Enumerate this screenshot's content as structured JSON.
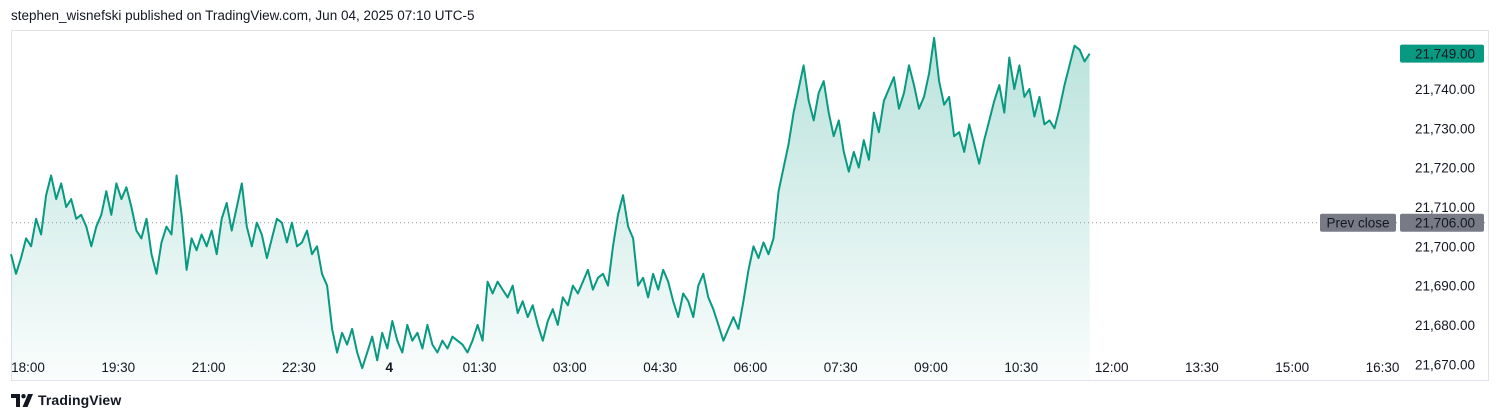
{
  "attribution": "stephen_wisnefski published on TradingView.com, Jun 04, 2025 07:10 UTC-5",
  "footer": {
    "brand": "TradingView",
    "logo_icon": "tradingview-logo-icon"
  },
  "colors": {
    "line": "#089981",
    "fill_top": "#089981",
    "label_bg": "#089981",
    "prev_close_bg": "#787b86",
    "dotted_line": "#9598a1"
  },
  "chart_data": {
    "type": "area",
    "y_range": [
      21666,
      21755
    ],
    "y_ticks": [
      {
        "value": 21740,
        "label": "21,740.00"
      },
      {
        "value": 21730,
        "label": "21,730.00"
      },
      {
        "value": 21720,
        "label": "21,720.00"
      },
      {
        "value": 21710,
        "label": "21,710.00"
      },
      {
        "value": 21700,
        "label": "21,700.00"
      },
      {
        "value": 21690,
        "label": "21,690.00"
      },
      {
        "value": 21680,
        "label": "21,680.00"
      },
      {
        "value": 21670,
        "label": "21,670.00"
      }
    ],
    "x_range": [
      "17:59",
      "18:00+1d"
    ],
    "x_ticks": [
      {
        "time": "18:00",
        "label": "18:00",
        "bold": false
      },
      {
        "time": "19:30",
        "label": "19:30",
        "bold": false
      },
      {
        "time": "21:00",
        "label": "21:00",
        "bold": false
      },
      {
        "time": "22:30",
        "label": "22:30",
        "bold": false
      },
      {
        "time": "00:00+1d",
        "label": "4",
        "bold": true
      },
      {
        "time": "01:30+1d",
        "label": "01:30",
        "bold": false
      },
      {
        "time": "03:00+1d",
        "label": "03:00",
        "bold": false
      },
      {
        "time": "04:30+1d",
        "label": "04:30",
        "bold": false
      },
      {
        "time": "06:00+1d",
        "label": "06:00",
        "bold": false
      },
      {
        "time": "07:30+1d",
        "label": "07:30",
        "bold": false
      },
      {
        "time": "09:00+1d",
        "label": "09:00",
        "bold": false
      },
      {
        "time": "10:30+1d",
        "label": "10:30",
        "bold": false
      },
      {
        "time": "12:00+1d",
        "label": "12:00",
        "bold": false
      },
      {
        "time": "13:30+1d",
        "label": "13:30",
        "bold": false
      },
      {
        "time": "15:00+1d",
        "label": "15:00",
        "bold": false
      },
      {
        "time": "16:30+1d",
        "label": "16:30",
        "bold": false
      }
    ],
    "last_price": {
      "value": 21749,
      "label": "21,749.00"
    },
    "prev_close": {
      "value": 21706,
      "label": "21,706.00",
      "text": "Prev close"
    },
    "series": [
      {
        "points": [
          [
            "18:00",
            21698
          ],
          [
            "18:05",
            21693
          ],
          [
            "18:10",
            21697
          ],
          [
            "18:15",
            21702
          ],
          [
            "18:20",
            21700
          ],
          [
            "18:25",
            21707
          ],
          [
            "18:30",
            21703
          ],
          [
            "18:35",
            21713
          ],
          [
            "18:40",
            21718
          ],
          [
            "18:45",
            21712
          ],
          [
            "18:50",
            21716
          ],
          [
            "18:55",
            21710
          ],
          [
            "19:00",
            21712
          ],
          [
            "19:05",
            21707
          ],
          [
            "19:10",
            21708
          ],
          [
            "19:15",
            21705
          ],
          [
            "19:20",
            21700
          ],
          [
            "19:25",
            21705
          ],
          [
            "19:30",
            21708
          ],
          [
            "19:35",
            21714
          ],
          [
            "19:40",
            21708
          ],
          [
            "19:45",
            21716
          ],
          [
            "19:50",
            21712
          ],
          [
            "19:55",
            21715
          ],
          [
            "20:00",
            21710
          ],
          [
            "20:05",
            21704
          ],
          [
            "20:10",
            21702
          ],
          [
            "20:15",
            21707
          ],
          [
            "20:20",
            21698
          ],
          [
            "20:25",
            21693
          ],
          [
            "20:30",
            21701
          ],
          [
            "20:35",
            21705
          ],
          [
            "20:40",
            21703
          ],
          [
            "20:45",
            21718
          ],
          [
            "20:50",
            21708
          ],
          [
            "20:55",
            21694
          ],
          [
            "21:00",
            21702
          ],
          [
            "21:05",
            21699
          ],
          [
            "21:10",
            21703
          ],
          [
            "21:15",
            21700
          ],
          [
            "21:20",
            21704
          ],
          [
            "21:25",
            21698
          ],
          [
            "21:30",
            21707
          ],
          [
            "21:35",
            21711
          ],
          [
            "21:40",
            21704
          ],
          [
            "21:45",
            21710
          ],
          [
            "21:50",
            21716
          ],
          [
            "21:55",
            21705
          ],
          [
            "22:00",
            21700
          ],
          [
            "22:05",
            21706
          ],
          [
            "22:10",
            21703
          ],
          [
            "22:15",
            21697
          ],
          [
            "22:20",
            21702
          ],
          [
            "22:25",
            21707
          ],
          [
            "22:30",
            21706
          ],
          [
            "22:35",
            21701
          ],
          [
            "22:40",
            21706
          ],
          [
            "22:45",
            21700
          ],
          [
            "22:50",
            21701
          ],
          [
            "22:55",
            21704
          ],
          [
            "23:00",
            21698
          ],
          [
            "23:05",
            21700
          ],
          [
            "23:10",
            21693
          ],
          [
            "23:15",
            21690
          ],
          [
            "23:20",
            21679
          ],
          [
            "23:25",
            21673
          ],
          [
            "23:30",
            21678
          ],
          [
            "23:35",
            21675
          ],
          [
            "23:40",
            21679
          ],
          [
            "23:45",
            21673
          ],
          [
            "23:50",
            21669
          ],
          [
            "23:55",
            21673
          ],
          [
            "00:00",
            21677
          ],
          [
            "00:05",
            21671
          ],
          [
            "00:10",
            21678
          ],
          [
            "00:15",
            21674
          ],
          [
            "00:20",
            21681
          ],
          [
            "00:25",
            21676
          ],
          [
            "00:30",
            21673
          ],
          [
            "00:35",
            21680
          ],
          [
            "00:40",
            21676
          ],
          [
            "00:45",
            21678
          ],
          [
            "00:50",
            21674
          ],
          [
            "00:55",
            21680
          ],
          [
            "01:00",
            21675
          ],
          [
            "01:05",
            21673
          ],
          [
            "01:10",
            21676
          ],
          [
            "01:15",
            21674
          ],
          [
            "01:20",
            21677
          ],
          [
            "01:25",
            21676
          ],
          [
            "01:30",
            21675
          ],
          [
            "01:35",
            21673
          ],
          [
            "01:40",
            21676
          ],
          [
            "01:45",
            21680
          ],
          [
            "01:50",
            21676
          ],
          [
            "01:55",
            21691
          ],
          [
            "02:00",
            21688
          ],
          [
            "02:05",
            21691
          ],
          [
            "02:10",
            21689
          ],
          [
            "02:15",
            21687
          ],
          [
            "02:20",
            21690
          ],
          [
            "02:25",
            21683
          ],
          [
            "02:30",
            21686
          ],
          [
            "02:35",
            21682
          ],
          [
            "02:40",
            21685
          ],
          [
            "02:45",
            21680
          ],
          [
            "02:50",
            21676
          ],
          [
            "02:55",
            21681
          ],
          [
            "03:00",
            21684
          ],
          [
            "03:05",
            21680
          ],
          [
            "03:10",
            21687
          ],
          [
            "03:15",
            21685
          ],
          [
            "03:20",
            21690
          ],
          [
            "03:25",
            21688
          ],
          [
            "03:30",
            21691
          ],
          [
            "03:35",
            21694
          ],
          [
            "03:40",
            21689
          ],
          [
            "03:45",
            21692
          ],
          [
            "03:50",
            21693
          ],
          [
            "03:55",
            21690
          ],
          [
            "04:00",
            21700
          ],
          [
            "04:05",
            21708
          ],
          [
            "04:10",
            21713
          ],
          [
            "04:15",
            21705
          ],
          [
            "04:20",
            21702
          ],
          [
            "04:25",
            21690
          ],
          [
            "04:30",
            21692
          ],
          [
            "04:35",
            21687
          ],
          [
            "04:40",
            21693
          ],
          [
            "04:45",
            21689
          ],
          [
            "04:50",
            21694
          ],
          [
            "04:55",
            21691
          ],
          [
            "05:00",
            21686
          ],
          [
            "05:05",
            21682
          ],
          [
            "05:10",
            21688
          ],
          [
            "05:15",
            21686
          ],
          [
            "05:20",
            21682
          ],
          [
            "05:25",
            21690
          ],
          [
            "05:30",
            21693
          ],
          [
            "05:35",
            21687
          ],
          [
            "05:40",
            21684
          ],
          [
            "05:45",
            21680
          ],
          [
            "05:50",
            21676
          ],
          [
            "05:55",
            21679
          ],
          [
            "06:00",
            21682
          ],
          [
            "06:05",
            21679
          ],
          [
            "06:10",
            21686
          ],
          [
            "06:15",
            21694
          ],
          [
            "06:20",
            21700
          ],
          [
            "06:25",
            21697
          ],
          [
            "06:30",
            21701
          ],
          [
            "06:35",
            21698
          ],
          [
            "06:40",
            21702
          ],
          [
            "06:45",
            21714
          ],
          [
            "06:50",
            21720
          ],
          [
            "06:55",
            21726
          ],
          [
            "07:00",
            21734
          ],
          [
            "07:05",
            21740
          ],
          [
            "07:10",
            21746
          ],
          [
            "07:15",
            21737
          ],
          [
            "07:20",
            21732
          ],
          [
            "07:25",
            21739
          ],
          [
            "07:30",
            21742
          ],
          [
            "07:35",
            21734
          ],
          [
            "07:40",
            21728
          ],
          [
            "07:45",
            21732
          ],
          [
            "07:50",
            21724
          ],
          [
            "07:55",
            21719
          ],
          [
            "08:00",
            21724
          ],
          [
            "08:05",
            21720
          ],
          [
            "08:10",
            21727
          ],
          [
            "08:15",
            21722
          ],
          [
            "08:20",
            21734
          ],
          [
            "08:25",
            21729
          ],
          [
            "08:30",
            21737
          ],
          [
            "08:35",
            21740
          ],
          [
            "08:40",
            21743
          ],
          [
            "08:45",
            21735
          ],
          [
            "08:50",
            21739
          ],
          [
            "08:55",
            21746
          ],
          [
            "09:00",
            21741
          ],
          [
            "09:05",
            21735
          ],
          [
            "09:10",
            21738
          ],
          [
            "09:15",
            21744
          ],
          [
            "09:20",
            21753
          ],
          [
            "09:25",
            21742
          ],
          [
            "09:30",
            21736
          ],
          [
            "09:35",
            21738
          ],
          [
            "09:40",
            21728
          ],
          [
            "09:45",
            21729
          ],
          [
            "09:50",
            21724
          ],
          [
            "09:55",
            21731
          ],
          [
            "10:00",
            21726
          ],
          [
            "10:05",
            21721
          ],
          [
            "10:10",
            21727
          ],
          [
            "10:15",
            21732
          ],
          [
            "10:20",
            21737
          ],
          [
            "10:25",
            21741
          ],
          [
            "10:30",
            21734
          ],
          [
            "10:35",
            21748
          ],
          [
            "10:40",
            21740
          ],
          [
            "10:45",
            21746
          ],
          [
            "10:50",
            21738
          ],
          [
            "10:55",
            21740
          ],
          [
            "11:00",
            21733
          ],
          [
            "11:05",
            21738
          ],
          [
            "11:10",
            21731
          ],
          [
            "11:15",
            21732
          ],
          [
            "11:20",
            21730
          ],
          [
            "11:25",
            21735
          ],
          [
            "11:30",
            21741
          ],
          [
            "11:35",
            21746
          ],
          [
            "11:40",
            21751
          ],
          [
            "11:45",
            21750
          ],
          [
            "11:50",
            21747
          ],
          [
            "11:55",
            21749
          ]
        ]
      }
    ]
  }
}
